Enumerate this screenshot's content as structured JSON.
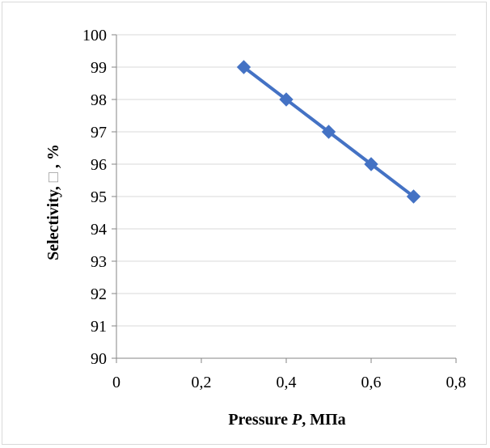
{
  "chart_data": {
    "type": "line",
    "x": [
      0.3,
      0.4,
      0.5,
      0.6,
      0.7
    ],
    "series": [
      {
        "values": [
          99,
          98,
          97,
          96,
          95
        ]
      }
    ],
    "xlabel_prefix": "Pressure ",
    "xlabel_var": "P",
    "xlabel_suffix": ", МПа",
    "ylabel_prefix": "Selectivity, ",
    "ylabel_symbol": "□",
    "ylabel_suffix": " , %",
    "xlim": [
      0,
      0.8
    ],
    "ylim": [
      90,
      100
    ],
    "xticks": [
      "0",
      "0,2",
      "0,4",
      "0,6",
      "0,8"
    ],
    "yticks": [
      "90",
      "91",
      "92",
      "93",
      "94",
      "95",
      "96",
      "97",
      "98",
      "99",
      "100"
    ],
    "grid": "horizontal",
    "legend": "none",
    "colors": {
      "series": "#4472c4",
      "grid": "#d9d9d9",
      "axis": "#868686"
    }
  }
}
